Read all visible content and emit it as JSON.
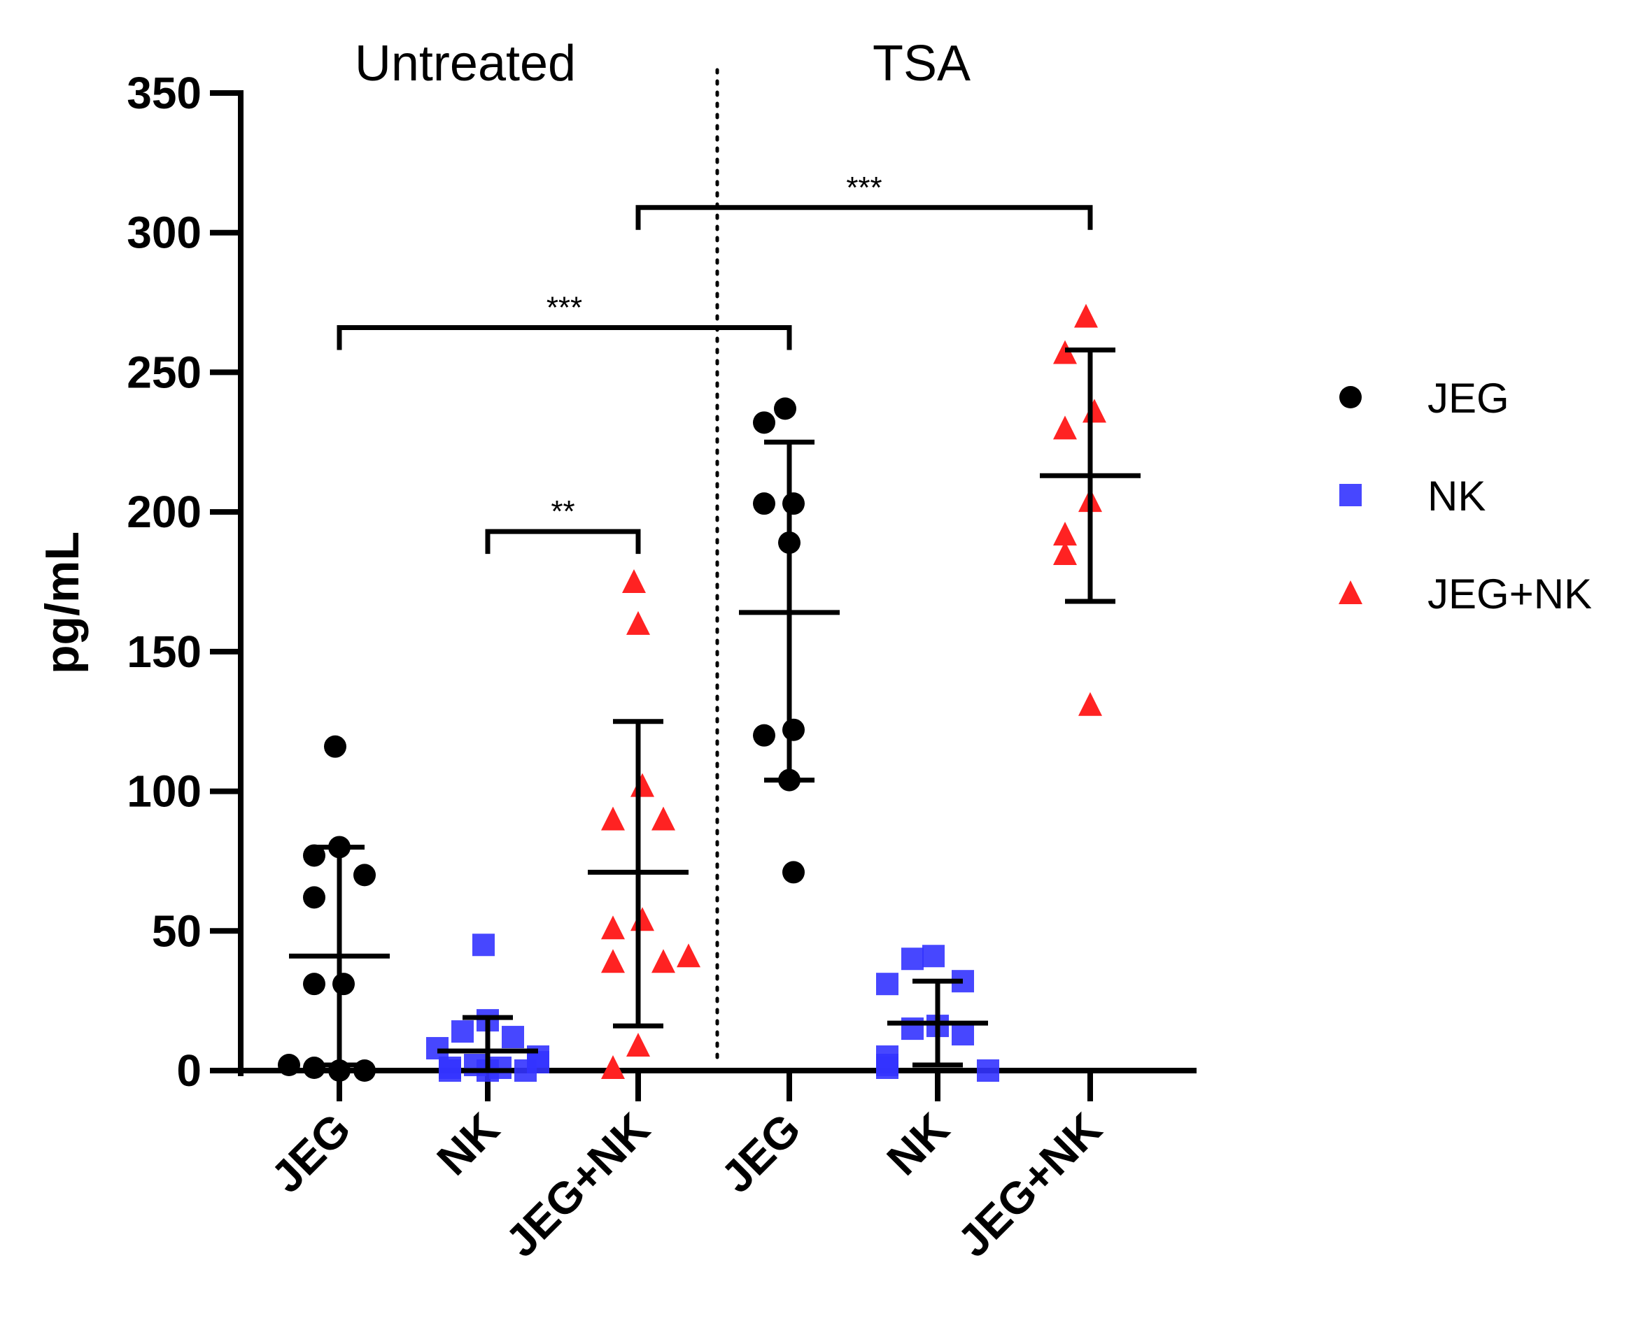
{
  "chart_data": {
    "type": "scatter",
    "title": "",
    "xlabel": "",
    "ylabel": "pg/mL",
    "ylim": [
      0,
      350
    ],
    "yticks": [
      0,
      50,
      100,
      150,
      200,
      250,
      300,
      350
    ],
    "grid": false,
    "legend_position": "right",
    "group_labels": [
      "Untreated",
      "TSA"
    ],
    "categories": [
      "JEG",
      "NK",
      "JEG+NK",
      "JEG",
      "NK",
      "JEG+NK"
    ],
    "series_styles": [
      {
        "name": "JEG",
        "marker": "circle",
        "color": "#000000"
      },
      {
        "name": "NK",
        "marker": "square",
        "color": "#3333ff"
      },
      {
        "name": "JEG+NK",
        "marker": "triangle",
        "color": "#ff2222"
      }
    ],
    "groups": [
      {
        "group": "Untreated",
        "category": "JEG",
        "series": "JEG",
        "points": [
          116,
          80,
          77,
          70,
          62,
          31,
          31,
          0,
          1,
          0,
          2
        ],
        "mean": 41,
        "err_low": 2,
        "err_high": 80
      },
      {
        "group": "Untreated",
        "category": "NK",
        "series": "NK",
        "points": [
          45,
          18,
          14,
          12,
          8,
          5,
          3,
          2,
          1,
          1,
          0,
          0,
          0
        ],
        "mean": 7,
        "err_low": 0,
        "err_high": 19
      },
      {
        "group": "Untreated",
        "category": "JEG+NK",
        "series": "JEG+NK",
        "points": [
          175,
          160,
          102,
          90,
          90,
          54,
          51,
          39,
          39,
          41,
          9,
          1
        ],
        "mean": 71,
        "err_low": 16,
        "err_high": 125
      },
      {
        "group": "TSA",
        "category": "JEG",
        "series": "JEG",
        "points": [
          237,
          232,
          203,
          203,
          189,
          122,
          120,
          104,
          71
        ],
        "mean": 164,
        "err_low": 104,
        "err_high": 225
      },
      {
        "group": "TSA",
        "category": "NK",
        "series": "NK",
        "points": [
          41,
          40,
          32,
          31,
          16,
          15,
          13,
          5,
          2,
          1,
          0
        ],
        "mean": 17,
        "err_low": 2,
        "err_high": 32
      },
      {
        "group": "TSA",
        "category": "JEG+NK",
        "series": "JEG+NK",
        "points": [
          270,
          257,
          236,
          230,
          204,
          192,
          185,
          131
        ],
        "mean": 213,
        "err_low": 168,
        "err_high": 258
      }
    ],
    "significance": [
      {
        "from": 2,
        "to": 5,
        "y": 309,
        "label": "***"
      },
      {
        "from": 0,
        "to": 3,
        "y": 266,
        "label": "***"
      },
      {
        "from": 1,
        "to": 2,
        "y": 193,
        "label": "**"
      }
    ]
  }
}
